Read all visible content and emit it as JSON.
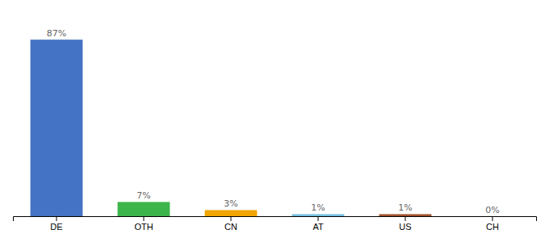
{
  "chart_data": {
    "type": "bar",
    "categories": [
      "DE",
      "OTH",
      "CN",
      "AT",
      "US",
      "CH"
    ],
    "values": [
      87,
      7,
      3,
      1,
      1,
      0
    ],
    "value_labels": [
      "87%",
      "7%",
      "3%",
      "1%",
      "1%",
      "0%"
    ],
    "colors": [
      "#4472c4",
      "#3cb54a",
      "#f0a500",
      "#74c0e0",
      "#a0522d",
      "#cccccc"
    ],
    "ylim": [
      0,
      97
    ],
    "data_labels": true,
    "tick_labels": "x",
    "grid": false
  }
}
